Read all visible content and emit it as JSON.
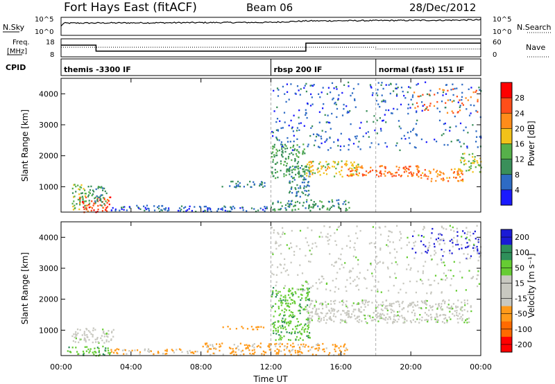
{
  "header": {
    "station": "Fort Hays East (fitACF)",
    "beam": "Beam 06",
    "date": "28/Dec/2012"
  },
  "noise_panel": {
    "left_label": "N.Sky",
    "right_label": "N.Search",
    "left_ticks": [
      "10^5",
      "10^0"
    ],
    "right_ticks": [
      "10^5",
      "10^0"
    ]
  },
  "freq_panel": {
    "left_label_1": "Freq.",
    "left_label_2": "[MHz]",
    "left_ticks": [
      "18",
      "8"
    ],
    "right_label": "Nave",
    "right_ticks": [
      "60",
      "0"
    ]
  },
  "cpid_panel": {
    "label": "CPID",
    "segments": [
      {
        "label": "themis -3300 IF",
        "start_hour": 0,
        "end_hour": 12
      },
      {
        "label": "rbsp 200 IF",
        "start_hour": 12,
        "end_hour": 18
      },
      {
        "label": "normal (fast) 151 IF",
        "start_hour": 18,
        "end_hour": 24
      }
    ]
  },
  "power_panel": {
    "ylabel": "Slant Range [km]",
    "colorbar_label": "Power [dB]",
    "colorbar_ticks": [
      "28",
      "24",
      "20",
      "16",
      "12",
      "8",
      "4"
    ]
  },
  "velocity_panel": {
    "ylabel": "Slant Range [km]",
    "colorbar_label": "Velocity [m s⁻¹]",
    "colorbar_ticks": [
      "200",
      "100",
      "50",
      "15",
      "-15",
      "-50",
      "-100",
      "-200"
    ]
  },
  "time_axis": {
    "xlabel": "Time UT",
    "ticks": [
      "00:00",
      "04:00",
      "08:00",
      "12:00",
      "16:00",
      "20:00",
      "00:00"
    ]
  },
  "chart_data": [
    {
      "type": "line",
      "name": "noise",
      "x_unit": "hours UT",
      "ylim_log10": [
        0,
        5
      ],
      "series": [
        {
          "name": "N.Sky",
          "x": [
            0,
            0.1,
            0.2,
            6,
            12,
            14,
            18,
            22,
            24
          ],
          "log10_values": [
            2.5,
            3.2,
            3.4,
            3.5,
            3.6,
            4.0,
            4.1,
            4.2,
            4.3
          ]
        }
      ]
    },
    {
      "type": "line",
      "name": "frequency",
      "x_unit": "hours UT",
      "ylim": [
        8,
        18
      ],
      "series": [
        {
          "name": "Freq.",
          "x": [
            0,
            2,
            2,
            14,
            14,
            24
          ],
          "values": [
            14.5,
            14.5,
            11.2,
            11.2,
            15.6,
            15.6
          ]
        },
        {
          "name": "Nave",
          "x": [
            0,
            12,
            18,
            18,
            24
          ],
          "values": [
            32,
            32,
            32,
            26,
            26
          ]
        }
      ]
    },
    {
      "type": "heatmap",
      "name": "power",
      "x_unit": "hours UT",
      "xlim": [
        0,
        24
      ],
      "y_unit": "km",
      "ylim": [
        180,
        4500
      ],
      "ytick_values": [
        1000,
        2000,
        3000,
        4000
      ],
      "xtick_values": [
        0,
        4,
        8,
        12,
        16,
        20,
        24
      ],
      "colorbar": {
        "range_db": [
          0,
          32
        ],
        "ticks": [
          4,
          8,
          12,
          16,
          20,
          24,
          28
        ]
      },
      "regions": [
        {
          "t": [
            0.6,
            1.5
          ],
          "r": [
            250,
            1100
          ],
          "db": 14
        },
        {
          "t": [
            1.0,
            2.8
          ],
          "r": [
            200,
            700
          ],
          "db": 26
        },
        {
          "t": [
            1.5,
            2.6
          ],
          "r": [
            400,
            1050
          ],
          "db": 10
        },
        {
          "t": [
            2.8,
            6.5
          ],
          "r": [
            250,
            420
          ],
          "db": 6
        },
        {
          "t": [
            5.5,
            12.0
          ],
          "r": [
            220,
            400
          ],
          "db": 6
        },
        {
          "t": [
            9.0,
            11.7
          ],
          "r": [
            1000,
            1200
          ],
          "db": 8
        },
        {
          "t": [
            12.0,
            14.0
          ],
          "r": [
            1300,
            2400
          ],
          "db": 12
        },
        {
          "t": [
            13.0,
            14.2
          ],
          "r": [
            700,
            1700
          ],
          "db": 8
        },
        {
          "t": [
            12.0,
            16.5
          ],
          "r": [
            250,
            600
          ],
          "db": 10
        },
        {
          "t": [
            14.0,
            17.0
          ],
          "r": [
            1350,
            1850
          ],
          "db": 18
        },
        {
          "t": [
            16.0,
            20.5
          ],
          "r": [
            1350,
            1700
          ],
          "db": 24
        },
        {
          "t": [
            20.5,
            23.0
          ],
          "r": [
            1200,
            1600
          ],
          "db": 22
        },
        {
          "t": [
            22.8,
            24.0
          ],
          "r": [
            1500,
            2100
          ],
          "db": 16
        },
        {
          "t": [
            20.0,
            24.0
          ],
          "r": [
            3400,
            4200
          ],
          "db": 24
        },
        {
          "t": [
            12.0,
            24.0
          ],
          "r": [
            2200,
            4400
          ],
          "db": 6
        }
      ]
    },
    {
      "type": "heatmap",
      "name": "velocity",
      "x_unit": "hours UT",
      "xlim": [
        0,
        24
      ],
      "y_unit": "km",
      "ylim": [
        180,
        4500
      ],
      "ytick_values": [
        1000,
        2000,
        3000,
        4000
      ],
      "xtick_values": [
        0,
        4,
        8,
        12,
        16,
        20,
        24
      ],
      "colorbar": {
        "range": [
          -250,
          250
        ],
        "ticks": [
          200,
          100,
          50,
          15,
          -15,
          -50,
          -100,
          -200
        ]
      },
      "regions": [
        {
          "t": [
            0.3,
            2.8
          ],
          "r": [
            200,
            500
          ],
          "v": 40
        },
        {
          "t": [
            0.6,
            3.0
          ],
          "r": [
            600,
            1100
          ],
          "v": 0
        },
        {
          "t": [
            2.8,
            8.0
          ],
          "r": [
            250,
            420
          ],
          "v": -60
        },
        {
          "t": [
            8.0,
            16.5
          ],
          "r": [
            220,
            600
          ],
          "v": -60
        },
        {
          "t": [
            9.0,
            11.7
          ],
          "r": [
            1050,
            1150
          ],
          "v": -70
        },
        {
          "t": [
            12.0,
            14.2
          ],
          "r": [
            700,
            2400
          ],
          "v": 40
        },
        {
          "t": [
            14.0,
            23.5
          ],
          "r": [
            1250,
            2000
          ],
          "v": 0
        },
        {
          "t": [
            20.0,
            24.0
          ],
          "r": [
            3300,
            4300
          ],
          "v": 220
        },
        {
          "t": [
            12.0,
            24.0
          ],
          "r": [
            2200,
            4400
          ],
          "v": 0
        }
      ]
    }
  ]
}
